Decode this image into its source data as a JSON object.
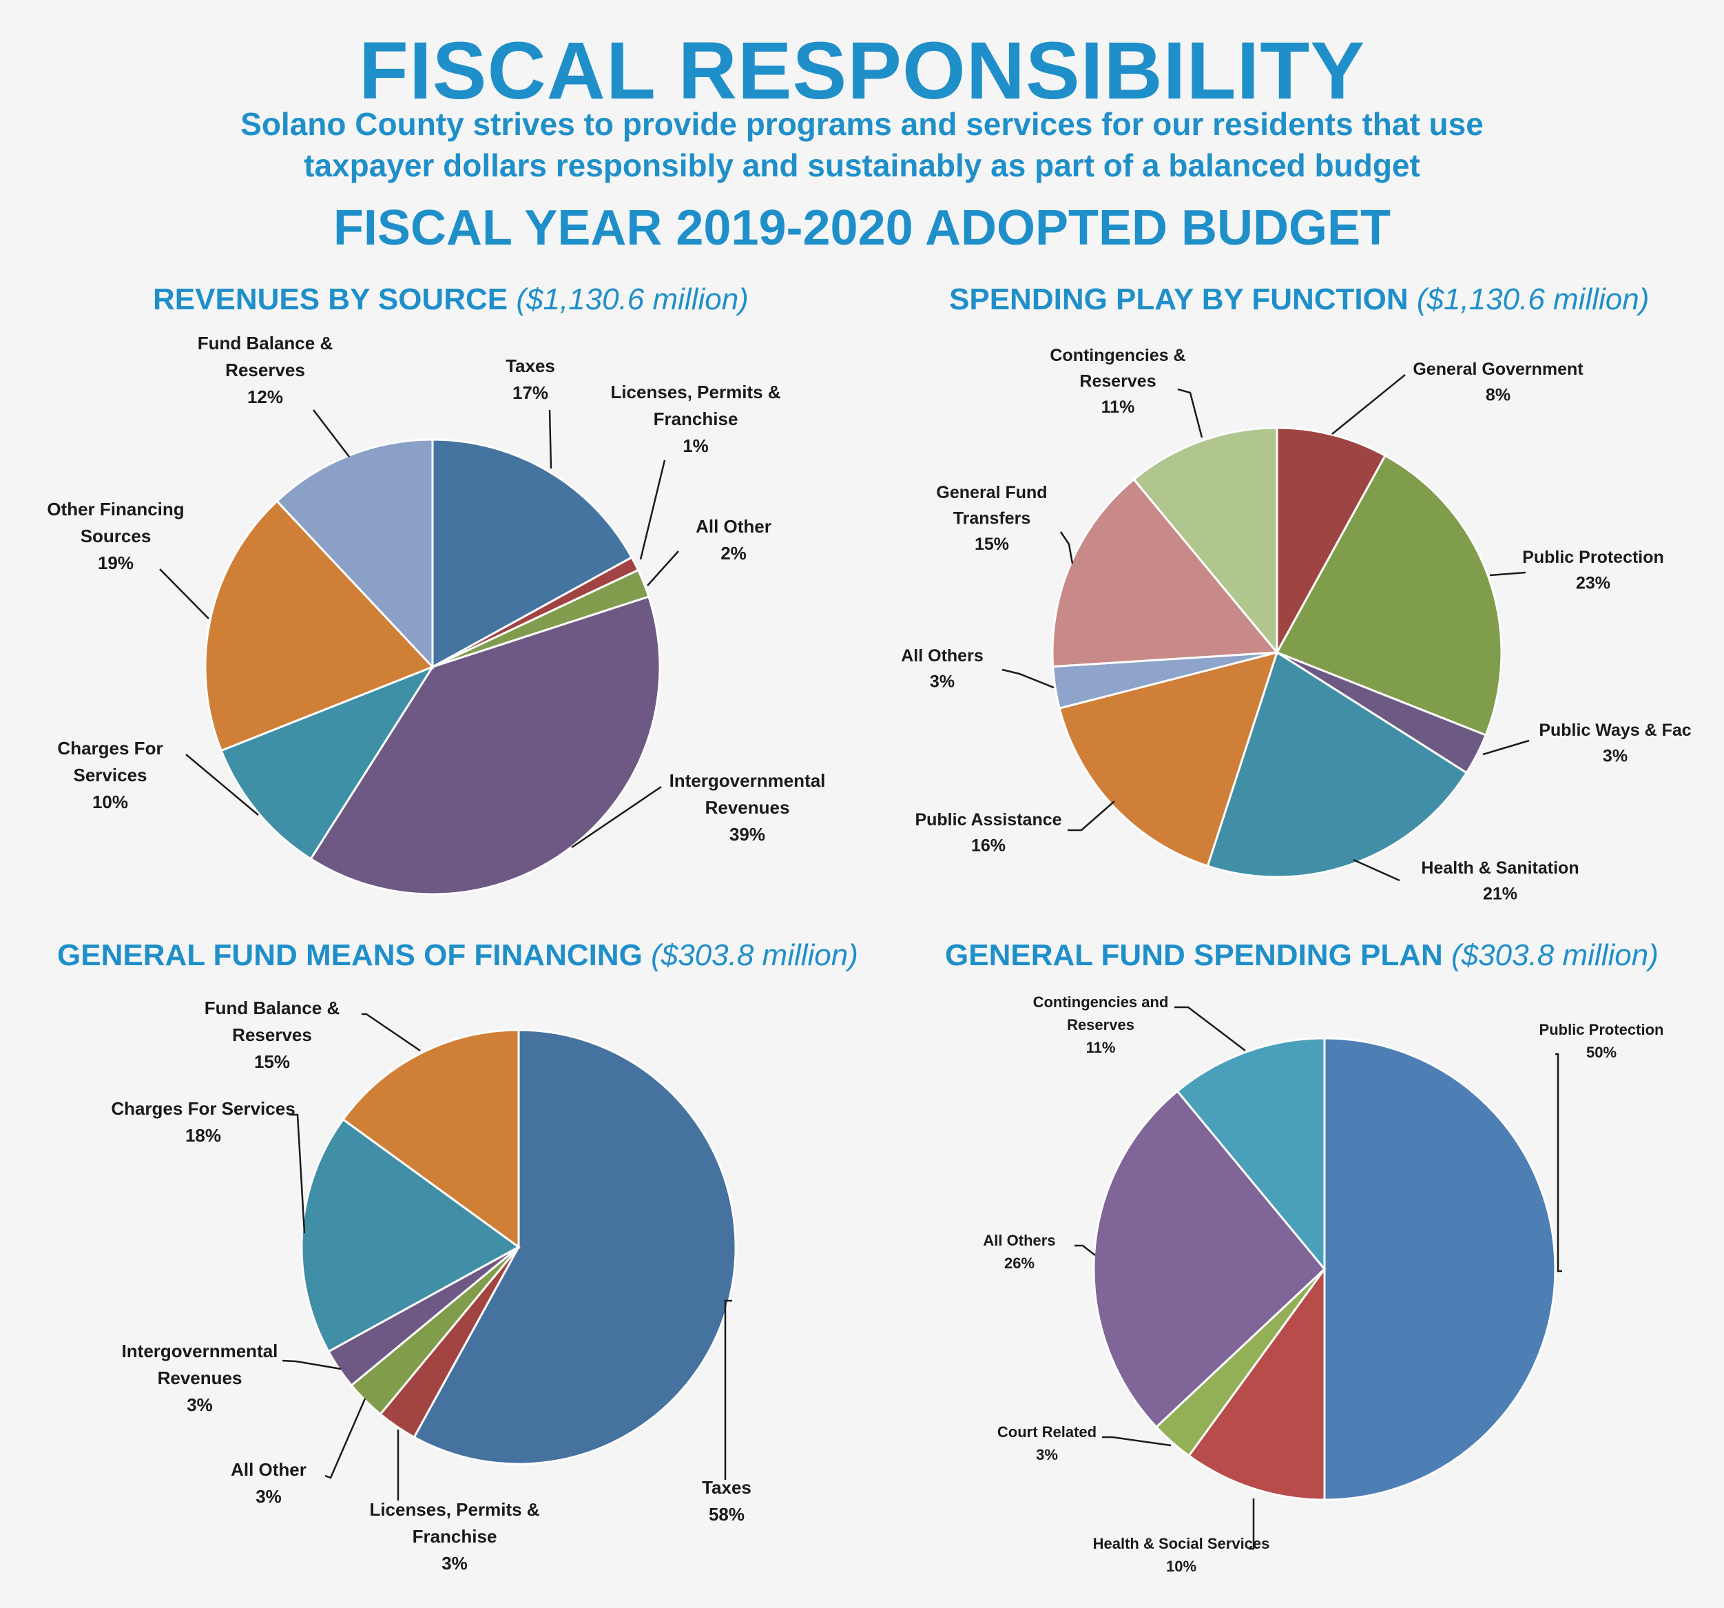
{
  "header": {
    "title": "FISCAL RESPONSIBILITY",
    "subtitle_line1": "Solano County strives to provide programs and services for our residents that use",
    "subtitle_line2": "taxpayer dollars responsibly and sustainably as part of a balanced budget",
    "fiscal_year": "FISCAL YEAR 2019-2020 ADOPTED BUDGET"
  },
  "chart_data": [
    {
      "type": "pie",
      "title": "REVENUES BY SOURCE",
      "subtitle": "($1,130.6 million)",
      "slices": [
        {
          "label": [
            "Taxes"
          ],
          "pct": "17%",
          "value": 17,
          "color": "#4674a0"
        },
        {
          "label": [
            "Licenses, Permits &",
            "Franchise"
          ],
          "pct": "1%",
          "value": 1,
          "color": "#a04342"
        },
        {
          "label": [
            "All Other"
          ],
          "pct": "2%",
          "value": 2,
          "color": "#809c4c"
        },
        {
          "label": [
            "Intergovernmental",
            "Revenues"
          ],
          "pct": "39%",
          "value": 39,
          "color": "#6e5984"
        },
        {
          "label": [
            "Charges For",
            "Services"
          ],
          "pct": "10%",
          "value": 10,
          "color": "#3f90a6"
        },
        {
          "label": [
            "Other Financing",
            "Sources"
          ],
          "pct": "19%",
          "value": 19,
          "color": "#d07f37"
        },
        {
          "label": [
            "Fund Balance &",
            "Reserves"
          ],
          "pct": "12%",
          "value": 12,
          "color": "#8ba0c6"
        }
      ]
    },
    {
      "type": "pie",
      "title": "SPENDING PLAY BY FUNCTION",
      "subtitle": "($1,130.6 million)",
      "slices": [
        {
          "label": [
            "General Government"
          ],
          "pct": "8%",
          "value": 8,
          "color": "#9e4443"
        },
        {
          "label": [
            "Public Protection"
          ],
          "pct": "23%",
          "value": 23,
          "color": "#809d4c"
        },
        {
          "label": [
            "Public Ways & Fac"
          ],
          "pct": "3%",
          "value": 3,
          "color": "#6c5a85"
        },
        {
          "label": [
            "Health & Sanitation"
          ],
          "pct": "21%",
          "value": 21,
          "color": "#418fa6"
        },
        {
          "label": [
            "Public Assistance"
          ],
          "pct": "16%",
          "value": 16,
          "color": "#d07f38"
        },
        {
          "label": [
            "All Others"
          ],
          "pct": "3%",
          "value": 3,
          "color": "#8ea4ca"
        },
        {
          "label": [
            "General Fund",
            "Transfers"
          ],
          "pct": "15%",
          "value": 15,
          "color": "#c78a88"
        },
        {
          "label": [
            "Contingencies &",
            "Reserves"
          ],
          "pct": "11%",
          "value": 11,
          "color": "#b1c58e"
        }
      ]
    },
    {
      "type": "pie",
      "title": "GENERAL FUND MEANS OF FINANCING",
      "subtitle": "($303.8 million)",
      "slices": [
        {
          "label": [
            "Taxes"
          ],
          "pct": "58%",
          "value": 58,
          "color": "#46729f"
        },
        {
          "label": [
            "Licenses, Permits &",
            "Franchise"
          ],
          "pct": "3%",
          "value": 3,
          "color": "#a24442"
        },
        {
          "label": [
            "All Other"
          ],
          "pct": "3%",
          "value": 3,
          "color": "#819d4b"
        },
        {
          "label": [
            "Intergovernmental",
            "Revenues"
          ],
          "pct": "3%",
          "value": 3,
          "color": "#6e5985"
        },
        {
          "label": [
            "Charges For Services"
          ],
          "pct": "18%",
          "value": 18,
          "color": "#418fa6"
        },
        {
          "label": [
            "Fund Balance &",
            "Reserves"
          ],
          "pct": "15%",
          "value": 15,
          "color": "#d07f37"
        }
      ]
    },
    {
      "type": "pie",
      "title": "GENERAL FUND SPENDING PLAN",
      "subtitle": "($303.8 million)",
      "slices": [
        {
          "label": [
            "Public Protection"
          ],
          "pct": "50%",
          "value": 50,
          "color": "#4d7eb4"
        },
        {
          "label": [
            "Health & Social Services"
          ],
          "pct": "10%",
          "value": 10,
          "color": "#b84c4a"
        },
        {
          "label": [
            "Court Related"
          ],
          "pct": "3%",
          "value": 3,
          "color": "#93b057"
        },
        {
          "label": [
            "All Others"
          ],
          "pct": "26%",
          "value": 26,
          "color": "#7f6598"
        },
        {
          "label": [
            "Contingencies and",
            "Reserves"
          ],
          "pct": "11%",
          "value": 11,
          "color": "#4aa0bb"
        }
      ]
    }
  ]
}
